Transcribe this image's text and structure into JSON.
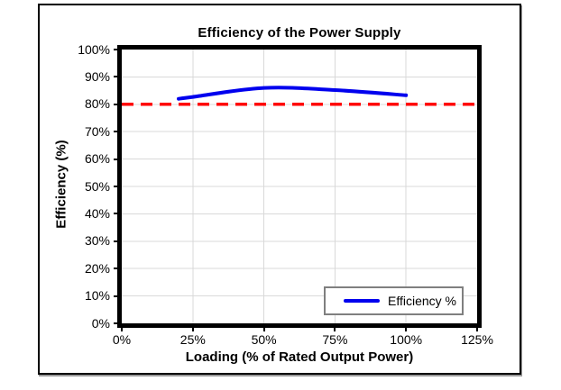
{
  "chart_data": {
    "type": "line",
    "title": "Efficiency of the Power Supply",
    "xlabel": "Loading (% of Rated Output Power)",
    "ylabel": "Efficiency (%)",
    "xlim": [
      0,
      125
    ],
    "ylim": [
      0,
      100
    ],
    "grid": true,
    "x_ticks": [
      {
        "value": 0,
        "label": "0%"
      },
      {
        "value": 25,
        "label": "25%"
      },
      {
        "value": 50,
        "label": "50%"
      },
      {
        "value": 75,
        "label": "75%"
      },
      {
        "value": 100,
        "label": "100%"
      },
      {
        "value": 125,
        "label": "125%"
      }
    ],
    "y_ticks": [
      {
        "value": 0,
        "label": "0%"
      },
      {
        "value": 10,
        "label": "10%"
      },
      {
        "value": 20,
        "label": "20%"
      },
      {
        "value": 30,
        "label": "30%"
      },
      {
        "value": 40,
        "label": "40%"
      },
      {
        "value": 50,
        "label": "50%"
      },
      {
        "value": 60,
        "label": "60%"
      },
      {
        "value": 70,
        "label": "70%"
      },
      {
        "value": 80,
        "label": "80%"
      },
      {
        "value": 90,
        "label": "90%"
      },
      {
        "value": 100,
        "label": "100%"
      }
    ],
    "series": [
      {
        "name": "Efficiency %",
        "color": "#0000EE",
        "x": [
          20,
          25,
          50,
          75,
          100
        ],
        "y": [
          82,
          82.7,
          86,
          85.2,
          83.3
        ]
      }
    ],
    "limit_line": {
      "y": 80,
      "color": "#FF0000",
      "style": "dashed"
    },
    "legend": {
      "position": "bottom-right"
    },
    "colors": {
      "gridline": "#D9D9D9",
      "plot_border": "#000000",
      "frame_border": "#000000",
      "legend_border": "#7F7F7F"
    }
  }
}
